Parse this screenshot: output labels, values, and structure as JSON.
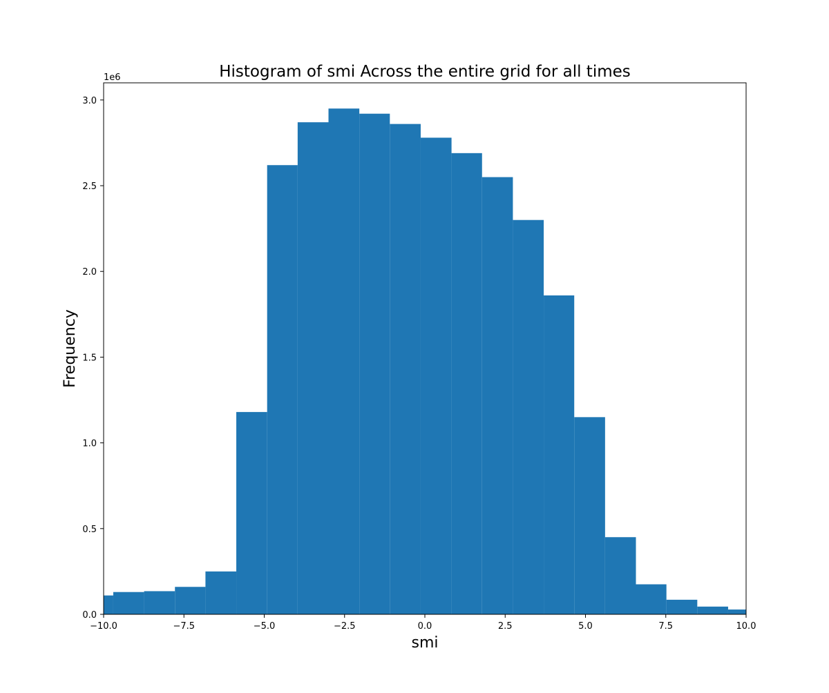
{
  "chart_data": {
    "type": "bar",
    "subtype": "histogram",
    "title": "Histogram of smi Across the entire grid for all times",
    "xlabel": "smi",
    "ylabel": "Frequency",
    "y_offset_label": "1e6",
    "y_scale_factor": 1000000,
    "xlim": [
      -10.0,
      10.0
    ],
    "ylim": [
      0,
      3100000
    ],
    "x_ticks": [
      -10.0,
      -7.5,
      -5.0,
      -2.5,
      0.0,
      2.5,
      5.0,
      7.5,
      10.0
    ],
    "x_tick_labels": [
      "−10.0",
      "−7.5",
      "−5.0",
      "−2.5",
      "0.0",
      "2.5",
      "5.0",
      "7.5",
      "10.0"
    ],
    "y_ticks": [
      0,
      500000,
      1000000,
      1500000,
      2000000,
      2500000,
      3000000
    ],
    "y_tick_labels": [
      "0.0",
      "0.5",
      "1.0",
      "1.5",
      "2.0",
      "2.5",
      "3.0"
    ],
    "bar_color": "#1f77b4",
    "grid": false,
    "legend": "none",
    "bins": [
      {
        "x0": -10.0,
        "x1": -9.7,
        "value": 110000
      },
      {
        "x0": -9.7,
        "x1": -8.74,
        "value": 130000
      },
      {
        "x0": -8.74,
        "x1": -7.78,
        "value": 135000
      },
      {
        "x0": -7.78,
        "x1": -6.83,
        "value": 160000
      },
      {
        "x0": -6.83,
        "x1": -5.87,
        "value": 250000
      },
      {
        "x0": -5.87,
        "x1": -4.91,
        "value": 1180000
      },
      {
        "x0": -4.91,
        "x1": -3.96,
        "value": 2620000
      },
      {
        "x0": -3.96,
        "x1": -3.0,
        "value": 2870000
      },
      {
        "x0": -3.0,
        "x1": -2.04,
        "value": 2950000
      },
      {
        "x0": -2.04,
        "x1": -1.09,
        "value": 2920000
      },
      {
        "x0": -1.09,
        "x1": -0.13,
        "value": 2860000
      },
      {
        "x0": -0.13,
        "x1": 0.83,
        "value": 2780000
      },
      {
        "x0": 0.83,
        "x1": 1.78,
        "value": 2690000
      },
      {
        "x0": 1.78,
        "x1": 2.74,
        "value": 2550000
      },
      {
        "x0": 2.74,
        "x1": 3.7,
        "value": 2300000
      },
      {
        "x0": 3.7,
        "x1": 4.65,
        "value": 1860000
      },
      {
        "x0": 4.65,
        "x1": 5.61,
        "value": 1150000
      },
      {
        "x0": 5.61,
        "x1": 6.57,
        "value": 450000
      },
      {
        "x0": 6.57,
        "x1": 7.52,
        "value": 175000
      },
      {
        "x0": 7.52,
        "x1": 8.48,
        "value": 85000
      },
      {
        "x0": 8.48,
        "x1": 9.44,
        "value": 45000
      },
      {
        "x0": 9.44,
        "x1": 10.0,
        "value": 28000
      }
    ]
  }
}
